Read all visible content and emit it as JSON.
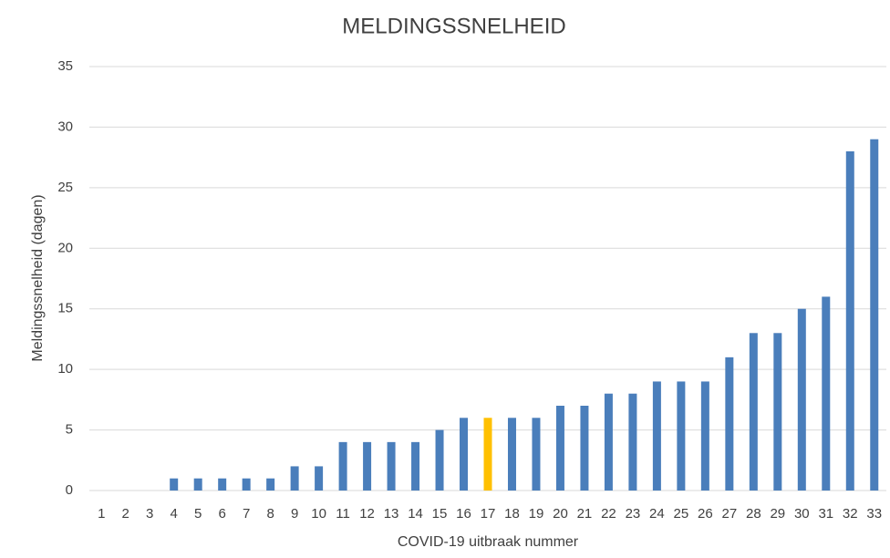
{
  "chart_data": {
    "type": "bar",
    "title": "MELDINGSSNELHEID",
    "x_label": "COVID-19 uitbraak nummer",
    "y_label": "Meldingssnelheid (dagen)",
    "categories": [
      "1",
      "2",
      "3",
      "4",
      "5",
      "6",
      "7",
      "8",
      "9",
      "10",
      "11",
      "12",
      "13",
      "14",
      "15",
      "16",
      "17",
      "18",
      "19",
      "20",
      "21",
      "22",
      "23",
      "24",
      "25",
      "26",
      "27",
      "28",
      "29",
      "30",
      "31",
      "32",
      "33"
    ],
    "values": [
      0,
      0,
      0,
      1,
      1,
      1,
      1,
      1,
      2,
      2,
      4,
      4,
      4,
      4,
      5,
      6,
      6,
      6,
      6,
      7,
      7,
      8,
      8,
      9,
      9,
      9,
      11,
      13,
      13,
      15,
      16,
      28,
      29
    ],
    "colors": [
      "#4a7ebb",
      "#4a7ebb",
      "#4a7ebb",
      "#4a7ebb",
      "#4a7ebb",
      "#4a7ebb",
      "#4a7ebb",
      "#4a7ebb",
      "#4a7ebb",
      "#4a7ebb",
      "#4a7ebb",
      "#4a7ebb",
      "#4a7ebb",
      "#4a7ebb",
      "#4a7ebb",
      "#4a7ebb",
      "#ffc000",
      "#4a7ebb",
      "#4a7ebb",
      "#4a7ebb",
      "#4a7ebb",
      "#4a7ebb",
      "#4a7ebb",
      "#4a7ebb",
      "#4a7ebb",
      "#4a7ebb",
      "#4a7ebb",
      "#4a7ebb",
      "#4a7ebb",
      "#4a7ebb",
      "#4a7ebb",
      "#4a7ebb",
      "#4a7ebb"
    ],
    "ylim": [
      0,
      35
    ],
    "yticks": [
      0,
      5,
      10,
      15,
      20,
      25,
      30,
      35
    ],
    "grid": true
  }
}
